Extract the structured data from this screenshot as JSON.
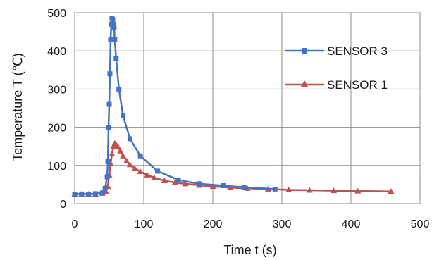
{
  "chart_data": {
    "type": "line",
    "xlabel": "Time t (s)",
    "ylabel": "Temperature  T (℃)",
    "xlim": [
      0,
      500
    ],
    "ylim": [
      0,
      500
    ],
    "xticks": [
      0,
      100,
      200,
      300,
      400,
      500
    ],
    "yticks": [
      0,
      100,
      200,
      300,
      400,
      500
    ],
    "grid": true,
    "legend_position": "right",
    "series": [
      {
        "name": "SENSOR 3",
        "color": "#4472C4",
        "marker": "square",
        "x": [
          0,
          10,
          20,
          30,
          40,
          44,
          47,
          48,
          49,
          50,
          51,
          52,
          53,
          54,
          55,
          56,
          57,
          58,
          60,
          64,
          70,
          80,
          95,
          120,
          150,
          180,
          215,
          245,
          290
        ],
        "y": [
          25,
          25,
          25,
          26,
          28,
          40,
          70,
          110,
          200,
          260,
          340,
          430,
          470,
          485,
          482,
          470,
          460,
          430,
          380,
          300,
          230,
          170,
          125,
          85,
          62,
          52,
          47,
          43,
          38
        ]
      },
      {
        "name": "SENSOR 1",
        "color": "#C0504D",
        "marker": "triangle",
        "x": [
          0,
          10,
          20,
          30,
          40,
          45,
          48,
          50,
          52,
          54,
          56,
          58,
          60,
          63,
          66,
          70,
          75,
          80,
          87,
          95,
          105,
          115,
          130,
          145,
          160,
          180,
          200,
          225,
          250,
          280,
          310,
          340,
          375,
          410,
          458
        ],
        "y": [
          25,
          25,
          25,
          25,
          27,
          32,
          45,
          75,
          105,
          130,
          150,
          158,
          155,
          148,
          138,
          125,
          112,
          102,
          92,
          84,
          75,
          68,
          60,
          55,
          52,
          48,
          45,
          42,
          40,
          38,
          36,
          35,
          34,
          33,
          32
        ]
      }
    ]
  }
}
